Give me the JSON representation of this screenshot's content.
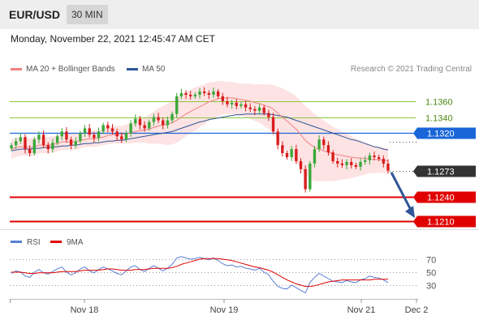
{
  "header": {
    "symbol": "EUR/USD",
    "timeframe": "30 MIN",
    "datetime": "Monday, November 22, 2021 12:45:47 AM CET"
  },
  "legend": {
    "ma20": "MA 20 + Bollinger Bands",
    "ma50": "MA 50",
    "copyright": "Research © 2021 Trading Central"
  },
  "colors": {
    "ma20": "#f08080",
    "ma50": "#2f5597",
    "band": "#fddede",
    "resistance": "#8dc63f",
    "pivot": "#1a66d9",
    "support": "#e00000",
    "bull": "#3aa83a",
    "bear": "#d81e1e",
    "last_price": "#333333",
    "rsi": "#5a7fd6",
    "rsi_ma": "#e00000",
    "arrow": "#2f5597"
  },
  "chart_data": {
    "type": "candlestick",
    "title": "",
    "x_ticks": [
      "Nov 18",
      "Nov 19",
      "Nov 21",
      "Dec 2"
    ],
    "ylim": [
      1.12,
      1.139
    ],
    "levels": [
      {
        "label": "1.1360",
        "value": 1.136,
        "kind": "resistance"
      },
      {
        "label": "1.1340",
        "value": 1.134,
        "kind": "resistance"
      },
      {
        "label": "1.1320",
        "value": 1.132,
        "kind": "pivot"
      },
      {
        "label": "1.1273",
        "value": 1.1273,
        "kind": "last_price"
      },
      {
        "label": "1.1240",
        "value": 1.124,
        "kind": "support"
      },
      {
        "label": "1.1210",
        "value": 1.121,
        "kind": "support"
      }
    ],
    "close": [
      1.1305,
      1.131,
      1.1315,
      1.13,
      1.1295,
      1.1312,
      1.1318,
      1.1305,
      1.13,
      1.1308,
      1.1316,
      1.1322,
      1.1312,
      1.1305,
      1.131,
      1.132,
      1.1326,
      1.1318,
      1.1314,
      1.1322,
      1.133,
      1.1326,
      1.1322,
      1.1316,
      1.1312,
      1.132,
      1.1332,
      1.1338,
      1.133,
      1.1326,
      1.1334,
      1.134,
      1.1336,
      1.133,
      1.1336,
      1.1344,
      1.1366,
      1.137,
      1.1368,
      1.1366,
      1.1368,
      1.1372,
      1.137,
      1.1368,
      1.1372,
      1.1366,
      1.136,
      1.1356,
      1.1358,
      1.1354,
      1.1356,
      1.1352,
      1.135,
      1.1348,
      1.1352,
      1.1345,
      1.134,
      1.1322,
      1.1305,
      1.1295,
      1.129,
      1.13,
      1.1285,
      1.1275,
      1.125,
      1.1282,
      1.13,
      1.1312,
      1.1305,
      1.1296,
      1.1285,
      1.1282,
      1.128,
      1.1284,
      1.128,
      1.1278,
      1.1284,
      1.1286,
      1.1292,
      1.129,
      1.1288,
      1.1282,
      1.1273
    ],
    "ma20": [
      1.13,
      1.1302,
      1.1303,
      1.1303,
      1.1302,
      1.1303,
      1.1305,
      1.1305,
      1.1305,
      1.1306,
      1.1307,
      1.1309,
      1.1309,
      1.1309,
      1.1309,
      1.1311,
      1.1312,
      1.1313,
      1.1313,
      1.1314,
      1.1315,
      1.1317,
      1.1318,
      1.1318,
      1.1318,
      1.1319,
      1.132,
      1.1322,
      1.1323,
      1.1324,
      1.1325,
      1.1327,
      1.1329,
      1.133,
      1.1331,
      1.1333,
      1.1336,
      1.134,
      1.1344,
      1.1347,
      1.135,
      1.1353,
      1.1356,
      1.1359,
      1.1361,
      1.1363,
      1.1364,
      1.1364,
      1.1364,
      1.1363,
      1.1362,
      1.1361,
      1.136,
      1.1358,
      1.1357,
      1.1355,
      1.1353,
      1.135,
      1.1345,
      1.134,
      1.1335,
      1.133,
      1.1325,
      1.1318,
      1.1311,
      1.1306,
      1.1302,
      1.13,
      1.1298,
      1.1296,
      1.1294,
      1.1293,
      1.1292,
      1.1291,
      1.129,
      1.1289,
      1.1289,
      1.1288,
      1.1288,
      1.1287,
      1.1287,
      1.1286,
      1.1285
    ],
    "ma50": [
      1.1298,
      1.1299,
      1.13,
      1.13,
      1.13,
      1.1301,
      1.1301,
      1.1302,
      1.1302,
      1.1303,
      1.1303,
      1.1304,
      1.1304,
      1.1305,
      1.1305,
      1.1306,
      1.1307,
      1.1307,
      1.1308,
      1.1308,
      1.1309,
      1.131,
      1.131,
      1.1311,
      1.1311,
      1.1312,
      1.1313,
      1.1314,
      1.1315,
      1.1316,
      1.1317,
      1.1318,
      1.1319,
      1.132,
      1.1321,
      1.1322,
      1.1324,
      1.1326,
      1.1328,
      1.133,
      1.1332,
      1.1334,
      1.1335,
      1.1337,
      1.1338,
      1.1339,
      1.134,
      1.1341,
      1.1342,
      1.1343,
      1.1343,
      1.1344,
      1.1344,
      1.1344,
      1.1344,
      1.1344,
      1.1344,
      1.1343,
      1.1342,
      1.1341,
      1.134,
      1.1338,
      1.1336,
      1.1334,
      1.1332,
      1.133,
      1.1328,
      1.1326,
      1.1324,
      1.1322,
      1.132,
      1.1318,
      1.1316,
      1.1314,
      1.1312,
      1.1311,
      1.1309,
      1.1307,
      1.1305,
      1.1303,
      1.1302,
      1.13,
      1.1299
    ],
    "band_half_width": [
      0.0012,
      0.0012,
      0.0011,
      0.0011,
      0.0011,
      0.0011,
      0.001,
      0.001,
      0.001,
      0.001,
      0.001,
      0.001,
      0.001,
      0.001,
      0.001,
      0.001,
      0.001,
      0.001,
      0.001,
      0.001,
      0.001,
      0.0011,
      0.0011,
      0.0011,
      0.0011,
      0.0012,
      0.0013,
      0.0014,
      0.0015,
      0.0016,
      0.0018,
      0.002,
      0.0022,
      0.0024,
      0.0026,
      0.0027,
      0.0028,
      0.0028,
      0.0028,
      0.0027,
      0.0027,
      0.0026,
      0.0025,
      0.0024,
      0.0023,
      0.0022,
      0.0021,
      0.002,
      0.002,
      0.002,
      0.002,
      0.0021,
      0.0022,
      0.0023,
      0.0024,
      0.0026,
      0.0028,
      0.003,
      0.0033,
      0.0036,
      0.0038,
      0.004,
      0.0041,
      0.0042,
      0.0043,
      0.0043,
      0.0042,
      0.004,
      0.0038,
      0.0036,
      0.0034,
      0.0032,
      0.003,
      0.0028,
      0.0026,
      0.0024,
      0.0022,
      0.002,
      0.0018,
      0.0017,
      0.0016,
      0.0016,
      0.0016
    ],
    "forecast_target": 1.121,
    "rsi": {
      "legend": "RSI",
      "ma_legend": "9MA",
      "levels": [
        70,
        50,
        30
      ],
      "values": [
        48,
        52,
        50,
        44,
        42,
        50,
        54,
        49,
        47,
        51,
        55,
        58,
        50,
        46,
        49,
        55,
        58,
        52,
        49,
        54,
        58,
        55,
        52,
        48,
        46,
        52,
        58,
        60,
        54,
        51,
        56,
        60,
        56,
        52,
        56,
        62,
        72,
        74,
        72,
        70,
        71,
        73,
        71,
        69,
        72,
        68,
        63,
        60,
        61,
        58,
        59,
        56,
        55,
        53,
        56,
        50,
        46,
        36,
        28,
        25,
        24,
        30,
        26,
        22,
        18,
        34,
        42,
        48,
        44,
        40,
        36,
        35,
        34,
        37,
        35,
        34,
        38,
        40,
        44,
        42,
        41,
        38,
        34
      ],
      "ma": [
        50,
        50,
        50,
        49,
        48,
        48,
        49,
        49,
        49,
        49,
        50,
        51,
        51,
        51,
        51,
        52,
        53,
        53,
        53,
        53,
        54,
        55,
        55,
        54,
        53,
        53,
        53,
        54,
        54,
        54,
        55,
        56,
        56,
        56,
        56,
        57,
        59,
        62,
        64,
        66,
        68,
        70,
        71,
        71,
        71,
        71,
        70,
        69,
        68,
        66,
        64,
        62,
        60,
        58,
        57,
        55,
        53,
        50,
        46,
        42,
        38,
        35,
        32,
        30,
        28,
        28,
        29,
        31,
        33,
        35,
        36,
        37,
        38,
        38,
        38,
        38,
        38,
        38,
        38,
        39,
        39,
        39,
        39
      ]
    }
  }
}
